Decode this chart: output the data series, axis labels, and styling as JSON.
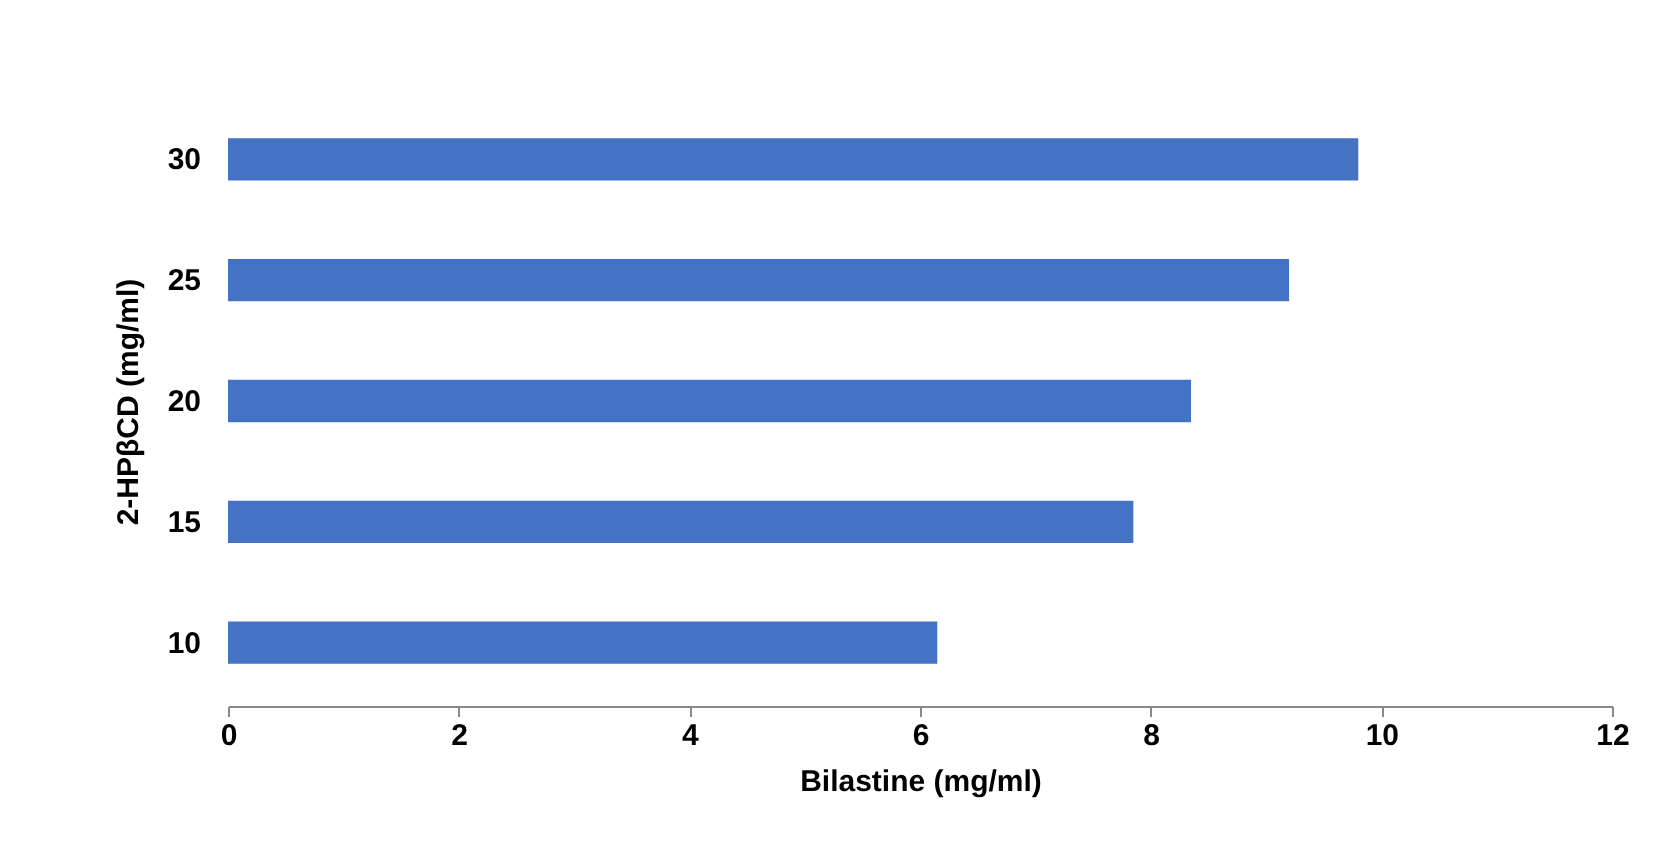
{
  "chart_data": {
    "type": "bar",
    "orientation": "horizontal",
    "xlabel": "Bilastine (mg/ml)",
    "ylabel": "2-HPβCD (mg/ml)",
    "categories": [
      "30",
      "25",
      "20",
      "15",
      "10"
    ],
    "values": [
      9.8,
      9.2,
      8.35,
      7.85,
      6.15
    ],
    "color": "#4472c4",
    "xlim": [
      0,
      12
    ],
    "xticks": [
      0,
      2,
      4,
      6,
      8,
      10,
      12
    ],
    "grid": false
  }
}
